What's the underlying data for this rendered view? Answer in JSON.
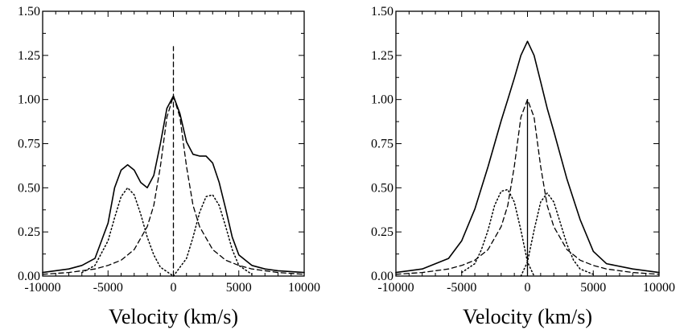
{
  "chart_data": [
    {
      "type": "line",
      "panel": "left",
      "xlabel": "Velocity (km/s)",
      "ylabel": "",
      "title": "",
      "xlim": [
        -10000,
        10000
      ],
      "ylim": [
        0,
        1.5
      ],
      "x_ticks": [
        -10000,
        -5000,
        0,
        5000,
        10000
      ],
      "x_tick_labels": [
        "-10000",
        "-5000",
        "0",
        "5000",
        "10000"
      ],
      "y_ticks": [
        0,
        0.25,
        0.5,
        0.75,
        1.0,
        1.25,
        1.5
      ],
      "y_tick_labels": [
        "0.00",
        "0.25",
        "0.50",
        "0.75",
        "1.00",
        "1.25",
        "1.50"
      ],
      "grid": false,
      "series": [
        {
          "style": "solid",
          "x": [
            -10000,
            -8000,
            -7000,
            -6000,
            -5000,
            -4500,
            -4000,
            -3500,
            -3000,
            -2500,
            -2000,
            -1500,
            -1000,
            -500,
            0,
            500,
            1000,
            1500,
            2000,
            2500,
            3000,
            3500,
            4000,
            4500,
            5000,
            6000,
            7000,
            8000,
            10000
          ],
          "y": [
            0.02,
            0.04,
            0.06,
            0.1,
            0.3,
            0.5,
            0.6,
            0.63,
            0.6,
            0.53,
            0.5,
            0.57,
            0.75,
            0.95,
            1.02,
            0.92,
            0.76,
            0.69,
            0.68,
            0.68,
            0.64,
            0.53,
            0.38,
            0.22,
            0.12,
            0.06,
            0.04,
            0.03,
            0.02
          ]
        },
        {
          "style": "dashed",
          "x": [
            -10000,
            -8000,
            -6000,
            -5000,
            -4000,
            -3000,
            -2000,
            -1500,
            -1000,
            -500,
            0,
            500,
            1000,
            1500,
            2000,
            3000,
            4000,
            5000,
            6000,
            8000,
            10000
          ],
          "y": [
            0.01,
            0.02,
            0.04,
            0.06,
            0.09,
            0.15,
            0.28,
            0.4,
            0.62,
            0.9,
            1.02,
            0.9,
            0.62,
            0.4,
            0.28,
            0.15,
            0.09,
            0.06,
            0.04,
            0.02,
            0.01
          ]
        },
        {
          "style": "dotted",
          "x": [
            -7000,
            -6000,
            -5000,
            -4500,
            -4000,
            -3500,
            -3000,
            -2500,
            -2000,
            -1500,
            -1000,
            0
          ],
          "y": [
            0.02,
            0.06,
            0.2,
            0.33,
            0.45,
            0.5,
            0.46,
            0.35,
            0.22,
            0.12,
            0.05,
            0.0
          ]
        },
        {
          "style": "dotted",
          "x": [
            0,
            1000,
            1500,
            2000,
            2500,
            3000,
            3500,
            4000,
            4500,
            5000,
            6000
          ],
          "y": [
            0.0,
            0.1,
            0.22,
            0.36,
            0.45,
            0.46,
            0.4,
            0.28,
            0.15,
            0.06,
            0.01
          ]
        },
        {
          "style": "dashed-vertical",
          "x": [
            0,
            0
          ],
          "y": [
            0,
            1.3
          ]
        }
      ]
    },
    {
      "type": "line",
      "panel": "right",
      "xlabel": "Velocity (km/s)",
      "ylabel": "",
      "title": "",
      "xlim": [
        -10000,
        10000
      ],
      "ylim": [
        0,
        1.5
      ],
      "x_ticks": [
        -10000,
        -5000,
        0,
        5000,
        10000
      ],
      "x_tick_labels": [
        "-10000",
        "-5000",
        "0",
        "5000",
        "10000"
      ],
      "y_ticks": [
        0,
        0.25,
        0.5,
        0.75,
        1.0,
        1.25,
        1.5
      ],
      "y_tick_labels": [
        "0.00",
        "0.25",
        "0.50",
        "0.75",
        "1.00",
        "1.25",
        "1.50"
      ],
      "grid": false,
      "series": [
        {
          "style": "solid",
          "x": [
            -10000,
            -8000,
            -6000,
            -5000,
            -4000,
            -3000,
            -2000,
            -1500,
            -1000,
            -500,
            0,
            500,
            1000,
            1500,
            2000,
            3000,
            4000,
            5000,
            6000,
            8000,
            10000
          ],
          "y": [
            0.02,
            0.04,
            0.1,
            0.2,
            0.38,
            0.62,
            0.88,
            1.0,
            1.12,
            1.25,
            1.33,
            1.25,
            1.1,
            0.95,
            0.82,
            0.55,
            0.32,
            0.14,
            0.07,
            0.04,
            0.02
          ]
        },
        {
          "style": "dashed",
          "x": [
            -10000,
            -8000,
            -6000,
            -5000,
            -4000,
            -3000,
            -2000,
            -1500,
            -1000,
            -500,
            0,
            500,
            1000,
            1500,
            2000,
            3000,
            4000,
            5000,
            6000,
            8000,
            10000
          ],
          "y": [
            0.01,
            0.02,
            0.04,
            0.06,
            0.09,
            0.15,
            0.28,
            0.4,
            0.62,
            0.9,
            1.0,
            0.9,
            0.62,
            0.4,
            0.28,
            0.15,
            0.09,
            0.06,
            0.04,
            0.02,
            0.01
          ]
        },
        {
          "style": "dotted",
          "x": [
            -5000,
            -4000,
            -3500,
            -3000,
            -2500,
            -2000,
            -1500,
            -1000,
            -500,
            0,
            500
          ],
          "y": [
            0.02,
            0.07,
            0.15,
            0.26,
            0.4,
            0.48,
            0.49,
            0.42,
            0.26,
            0.08,
            0.0
          ]
        },
        {
          "style": "dotted",
          "x": [
            -500,
            0,
            500,
            1000,
            1500,
            2000,
            2500,
            3000,
            3500,
            4000,
            5000
          ],
          "y": [
            0.0,
            0.08,
            0.26,
            0.42,
            0.47,
            0.42,
            0.3,
            0.18,
            0.09,
            0.04,
            0.01
          ]
        },
        {
          "style": "solid-vertical",
          "x": [
            0,
            0
          ],
          "y": [
            0,
            1.0
          ]
        }
      ]
    }
  ]
}
